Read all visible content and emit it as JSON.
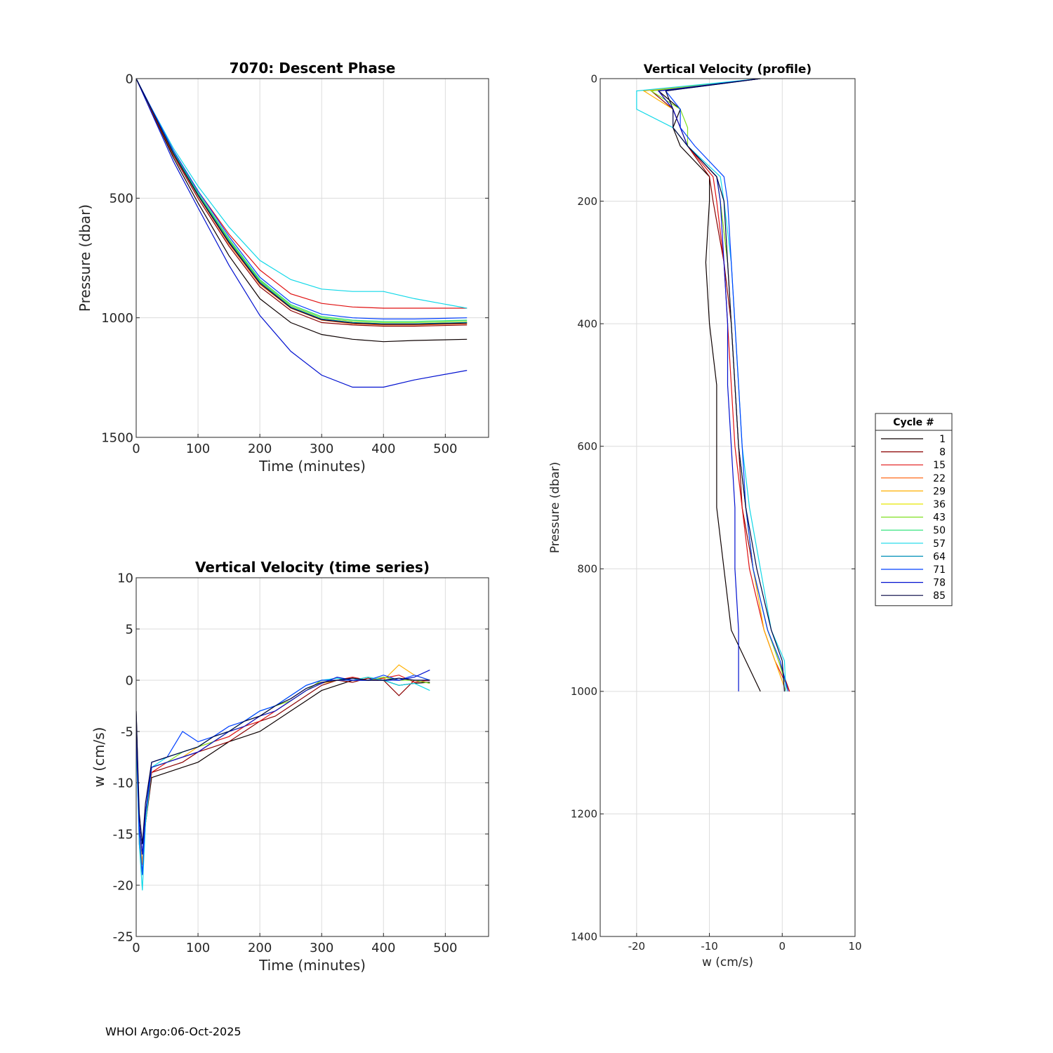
{
  "footer": "WHOI Argo:06-Oct-2025",
  "legend": {
    "title": "Cycle #",
    "entries": [
      {
        "label": "1",
        "color": "#0d0000"
      },
      {
        "label": "8",
        "color": "#8b0000"
      },
      {
        "label": "15",
        "color": "#e01010"
      },
      {
        "label": "22",
        "color": "#ff5a00"
      },
      {
        "label": "29",
        "color": "#ffb000"
      },
      {
        "label": "36",
        "color": "#e8e800"
      },
      {
        "label": "43",
        "color": "#80e020"
      },
      {
        "label": "50",
        "color": "#20e070"
      },
      {
        "label": "57",
        "color": "#10d8e8"
      },
      {
        "label": "64",
        "color": "#0090b8"
      },
      {
        "label": "71",
        "color": "#0040ff"
      },
      {
        "label": "78",
        "color": "#0010d0"
      },
      {
        "label": "85",
        "color": "#000040"
      }
    ]
  },
  "chart_data": [
    {
      "id": "descent",
      "type": "line",
      "title": "7070: Descent Phase",
      "xlabel": "Time (minutes)",
      "ylabel": "Pressure (dbar)",
      "xlim": [
        0,
        570
      ],
      "ylim": [
        1500,
        0
      ],
      "xticks": [
        0,
        100,
        200,
        300,
        400,
        500
      ],
      "yticks": [
        0,
        500,
        1000,
        1500
      ],
      "grid": true,
      "x": [
        0,
        20,
        60,
        100,
        150,
        200,
        250,
        300,
        350,
        400,
        450,
        535
      ],
      "series": [
        {
          "name": "1",
          "color": "#0d0000",
          "values": [
            0,
            110,
            330,
            520,
            740,
            920,
            1020,
            1070,
            1090,
            1100,
            1095,
            1090
          ]
        },
        {
          "name": "8",
          "color": "#8b0000",
          "values": [
            0,
            110,
            320,
            500,
            700,
            870,
            970,
            1020,
            1030,
            1035,
            1035,
            1030
          ]
        },
        {
          "name": "15",
          "color": "#e01010",
          "values": [
            0,
            100,
            300,
            470,
            650,
            800,
            900,
            940,
            955,
            960,
            960,
            960
          ]
        },
        {
          "name": "22",
          "color": "#ff5a00",
          "values": [
            0,
            105,
            315,
            490,
            690,
            860,
            960,
            1010,
            1025,
            1030,
            1030,
            1025
          ]
        },
        {
          "name": "29",
          "color": "#ffb000",
          "values": [
            0,
            105,
            310,
            485,
            680,
            850,
            955,
            1005,
            1020,
            1025,
            1025,
            1020
          ]
        },
        {
          "name": "36",
          "color": "#e8e800",
          "values": [
            0,
            104,
            312,
            488,
            685,
            855,
            958,
            1008,
            1022,
            1027,
            1027,
            1022
          ]
        },
        {
          "name": "43",
          "color": "#80e020",
          "values": [
            0,
            103,
            308,
            482,
            675,
            845,
            950,
            1000,
            1015,
            1020,
            1020,
            1015
          ]
        },
        {
          "name": "50",
          "color": "#20e070",
          "values": [
            0,
            102,
            305,
            478,
            670,
            840,
            945,
            995,
            1010,
            1015,
            1015,
            1010
          ]
        },
        {
          "name": "57",
          "color": "#10d8e8",
          "values": [
            0,
            100,
            290,
            450,
            620,
            760,
            840,
            880,
            890,
            890,
            920,
            960
          ]
        },
        {
          "name": "64",
          "color": "#0090b8",
          "values": [
            0,
            103,
            310,
            485,
            680,
            850,
            955,
            1005,
            1020,
            1025,
            1025,
            1020
          ]
        },
        {
          "name": "71",
          "color": "#0040ff",
          "values": [
            0,
            100,
            300,
            470,
            660,
            830,
            935,
            985,
            1000,
            1005,
            1005,
            1000
          ]
        },
        {
          "name": "78",
          "color": "#0010d0",
          "values": [
            0,
            115,
            345,
            540,
            780,
            990,
            1140,
            1240,
            1290,
            1290,
            1260,
            1220
          ]
        },
        {
          "name": "85",
          "color": "#000040",
          "values": [
            0,
            104,
            312,
            488,
            685,
            855,
            958,
            1008,
            1022,
            1027,
            1027,
            1022
          ]
        }
      ]
    },
    {
      "id": "vv_time",
      "type": "line",
      "title": "Vertical Velocity (time series)",
      "xlabel": "Time (minutes)",
      "ylabel": "w (cm/s)",
      "xlim": [
        0,
        570
      ],
      "ylim": [
        -25,
        10
      ],
      "xticks": [
        0,
        100,
        200,
        300,
        400,
        500
      ],
      "yticks": [
        10,
        5,
        0,
        -5,
        -10,
        -15,
        -20,
        -25
      ],
      "grid": true,
      "x": [
        0,
        5,
        10,
        15,
        25,
        50,
        75,
        100,
        125,
        150,
        175,
        200,
        225,
        250,
        275,
        300,
        325,
        350,
        375,
        400,
        425,
        450,
        475
      ],
      "series": [
        {
          "name": "1",
          "color": "#0d0000",
          "values": [
            -3,
            -14,
            -17,
            -14,
            -9.5,
            -9,
            -8.5,
            -8,
            -7,
            -6,
            -5.5,
            -5,
            -4,
            -3,
            -2,
            -1,
            -0.5,
            0,
            0,
            0,
            -0.5,
            -0.3,
            -0.2
          ]
        },
        {
          "name": "8",
          "color": "#8b0000",
          "values": [
            -4,
            -15,
            -18,
            -13,
            -9,
            -8.5,
            -8,
            -7,
            -6.5,
            -6,
            -5,
            -4,
            -3.5,
            -2.5,
            -1.5,
            -0.5,
            0,
            -0.2,
            0.2,
            0,
            -1.5,
            0,
            0
          ]
        },
        {
          "name": "15",
          "color": "#e01010",
          "values": [
            -5,
            -16,
            -19,
            -14,
            -9,
            -8,
            -7.5,
            -7,
            -6,
            -5.5,
            -4.5,
            -4,
            -3,
            -2,
            -1,
            0,
            0,
            0.3,
            0,
            0.2,
            0.5,
            -0.2,
            0
          ]
        },
        {
          "name": "29",
          "color": "#ffb000",
          "values": [
            -5,
            -15,
            -18,
            -13,
            -8.5,
            -8,
            -7.5,
            -6.5,
            -6,
            -5,
            -4.5,
            -3.5,
            -3,
            -2,
            -1,
            -0.3,
            0,
            0,
            0.3,
            0,
            1.5,
            0.5,
            0
          ]
        },
        {
          "name": "43",
          "color": "#80e020",
          "values": [
            -4,
            -15,
            -19,
            -14,
            -8.5,
            -8,
            -7,
            -6.5,
            -6,
            -5,
            -4,
            -3.5,
            -2.5,
            -2,
            -1,
            0,
            0,
            0.2,
            0,
            0.3,
            0,
            0,
            -0.3
          ]
        },
        {
          "name": "57",
          "color": "#10d8e8",
          "values": [
            -6,
            -16,
            -20.5,
            -14,
            -8.5,
            -7.5,
            -7,
            -6.5,
            -5.5,
            -5,
            -4,
            -3,
            -2.5,
            -1.5,
            -0.5,
            0,
            0.2,
            0,
            0.3,
            0,
            -0.5,
            -0.3,
            -1
          ]
        },
        {
          "name": "71",
          "color": "#0040ff",
          "values": [
            -5,
            -15,
            -19,
            -13,
            -8,
            -7.5,
            -5,
            -6,
            -5.5,
            -4.5,
            -4,
            -3,
            -2.5,
            -1.5,
            -0.5,
            0,
            0,
            0,
            0,
            0.5,
            0,
            0.5,
            0
          ]
        },
        {
          "name": "78",
          "color": "#0010d0",
          "values": [
            -4,
            -14,
            -17,
            -13,
            -8.5,
            -8,
            -7.5,
            -7,
            -6,
            -5,
            -4.5,
            -3.5,
            -3,
            -2,
            -1,
            -0.3,
            0.3,
            0,
            0,
            0,
            0,
            0.3,
            1
          ]
        },
        {
          "name": "85",
          "color": "#000040",
          "values": [
            -3,
            -13,
            -16,
            -12,
            -8,
            -7.5,
            -7,
            -6.5,
            -5.5,
            -5,
            -4,
            -3.5,
            -2.5,
            -1.8,
            -0.8,
            -0.2,
            0,
            0.2,
            0,
            0,
            0.2,
            0,
            0
          ]
        }
      ]
    },
    {
      "id": "vv_profile",
      "type": "line",
      "title": "Vertical Velocity (profile)",
      "xlabel": "w (cm/s)",
      "ylabel": "Pressure (dbar)",
      "xlim": [
        -25,
        10
      ],
      "ylim": [
        1400,
        0
      ],
      "xticks": [
        -20,
        -10,
        0,
        10
      ],
      "yticks": [
        0,
        200,
        400,
        600,
        800,
        1000,
        1200,
        1400
      ],
      "grid": true,
      "y": [
        0,
        20,
        50,
        80,
        110,
        160,
        200,
        300,
        400,
        500,
        600,
        700,
        800,
        900,
        950,
        1000
      ],
      "series": [
        {
          "name": "1",
          "color": "#0d0000",
          "values": [
            -3,
            -17,
            -14,
            -15,
            -14,
            -10,
            -10,
            -10.5,
            -10,
            -9,
            -9,
            -9,
            -8,
            -7,
            -5,
            -3
          ]
        },
        {
          "name": "8",
          "color": "#8b0000",
          "values": [
            -3,
            -18,
            -15,
            -14,
            -13,
            -10,
            -9.5,
            -8,
            -7,
            -6.5,
            -6,
            -5.5,
            -4,
            -2,
            -0.5,
            1
          ]
        },
        {
          "name": "15",
          "color": "#e01010",
          "values": [
            -3,
            -17,
            -15,
            -14,
            -13,
            -9.5,
            -9,
            -8,
            -7.5,
            -7,
            -6.5,
            -5.5,
            -4.5,
            -2.5,
            -1,
            1
          ]
        },
        {
          "name": "29",
          "color": "#ffb000",
          "values": [
            -3,
            -19,
            -15,
            -14,
            -13,
            -9,
            -8.5,
            -7.5,
            -7,
            -6.5,
            -6,
            -5,
            -4,
            -2.5,
            -1,
            0.5
          ]
        },
        {
          "name": "43",
          "color": "#80e020",
          "values": [
            -3,
            -18,
            -14,
            -13,
            -13,
            -9,
            -8.5,
            -7.5,
            -7,
            -6.5,
            -6,
            -5,
            -4,
            -2,
            -0.5,
            0.8
          ]
        },
        {
          "name": "57",
          "color": "#10d8e8",
          "values": [
            -3,
            -20,
            -20,
            -15,
            -13,
            -8.5,
            -8,
            -7,
            -6.5,
            -6,
            -5.5,
            -4.5,
            -3,
            -1.5,
            0.3,
            0.5
          ]
        },
        {
          "name": "71",
          "color": "#0040ff",
          "values": [
            -3,
            -16,
            -14,
            -14,
            -12,
            -8,
            -7.5,
            -7,
            -6.5,
            -6,
            -5.5,
            -5,
            -4,
            -2,
            -0.3,
            0.8
          ]
        },
        {
          "name": "78",
          "color": "#0010d0",
          "values": [
            -3,
            -17,
            -15,
            -14,
            -13,
            -9,
            -8.5,
            -8,
            -7.5,
            -7.5,
            -7,
            -6.5,
            -6.5,
            -6,
            -6,
            -6
          ]
        },
        {
          "name": "85",
          "color": "#000040",
          "values": [
            -3,
            -16,
            -15,
            -15,
            -13,
            -9,
            -8,
            -7.5,
            -7,
            -6.5,
            -6,
            -5,
            -3.5,
            -1.5,
            0,
            0.3
          ]
        }
      ]
    }
  ]
}
